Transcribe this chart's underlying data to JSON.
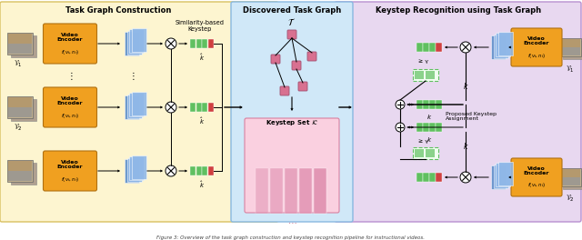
{
  "caption": "Figure 3: Overview of the task graph construction and keystep recognition pipeline for instructional videos.",
  "section1_title": "Task Graph Construction",
  "section2_title": "Discovered Task Graph",
  "section3_title": "Keystep Recognition using Task Graph",
  "bg_left_color": "#fdf5d0",
  "bg_left_border": "#d8c060",
  "bg_mid_color": "#d0e8f8",
  "bg_mid_border": "#88b8e0",
  "bg_right_color": "#e8d8f0",
  "bg_right_border": "#b890d0",
  "bg_keystep_color": "#fad0e0",
  "bg_keystep_border": "#d880a0",
  "encoder_color": "#f0a020",
  "encoder_border": "#b07010",
  "blue_stack_color": "#6090cc",
  "blue_stack_light": "#90b8e8",
  "green_bar_color": "#60c060",
  "red_bar_color": "#d04040",
  "pink_node_color": "#d87090",
  "pink_bar_color": "#e090b0",
  "video_label": "Video\nEncoder",
  "ge_gamma": "≥ γ",
  "similarity_label": "Similarity-based\nKeystep",
  "proposed_label": "Proposed Keystep\nAssignment",
  "figsize": [
    6.4,
    2.64
  ],
  "dpi": 100
}
